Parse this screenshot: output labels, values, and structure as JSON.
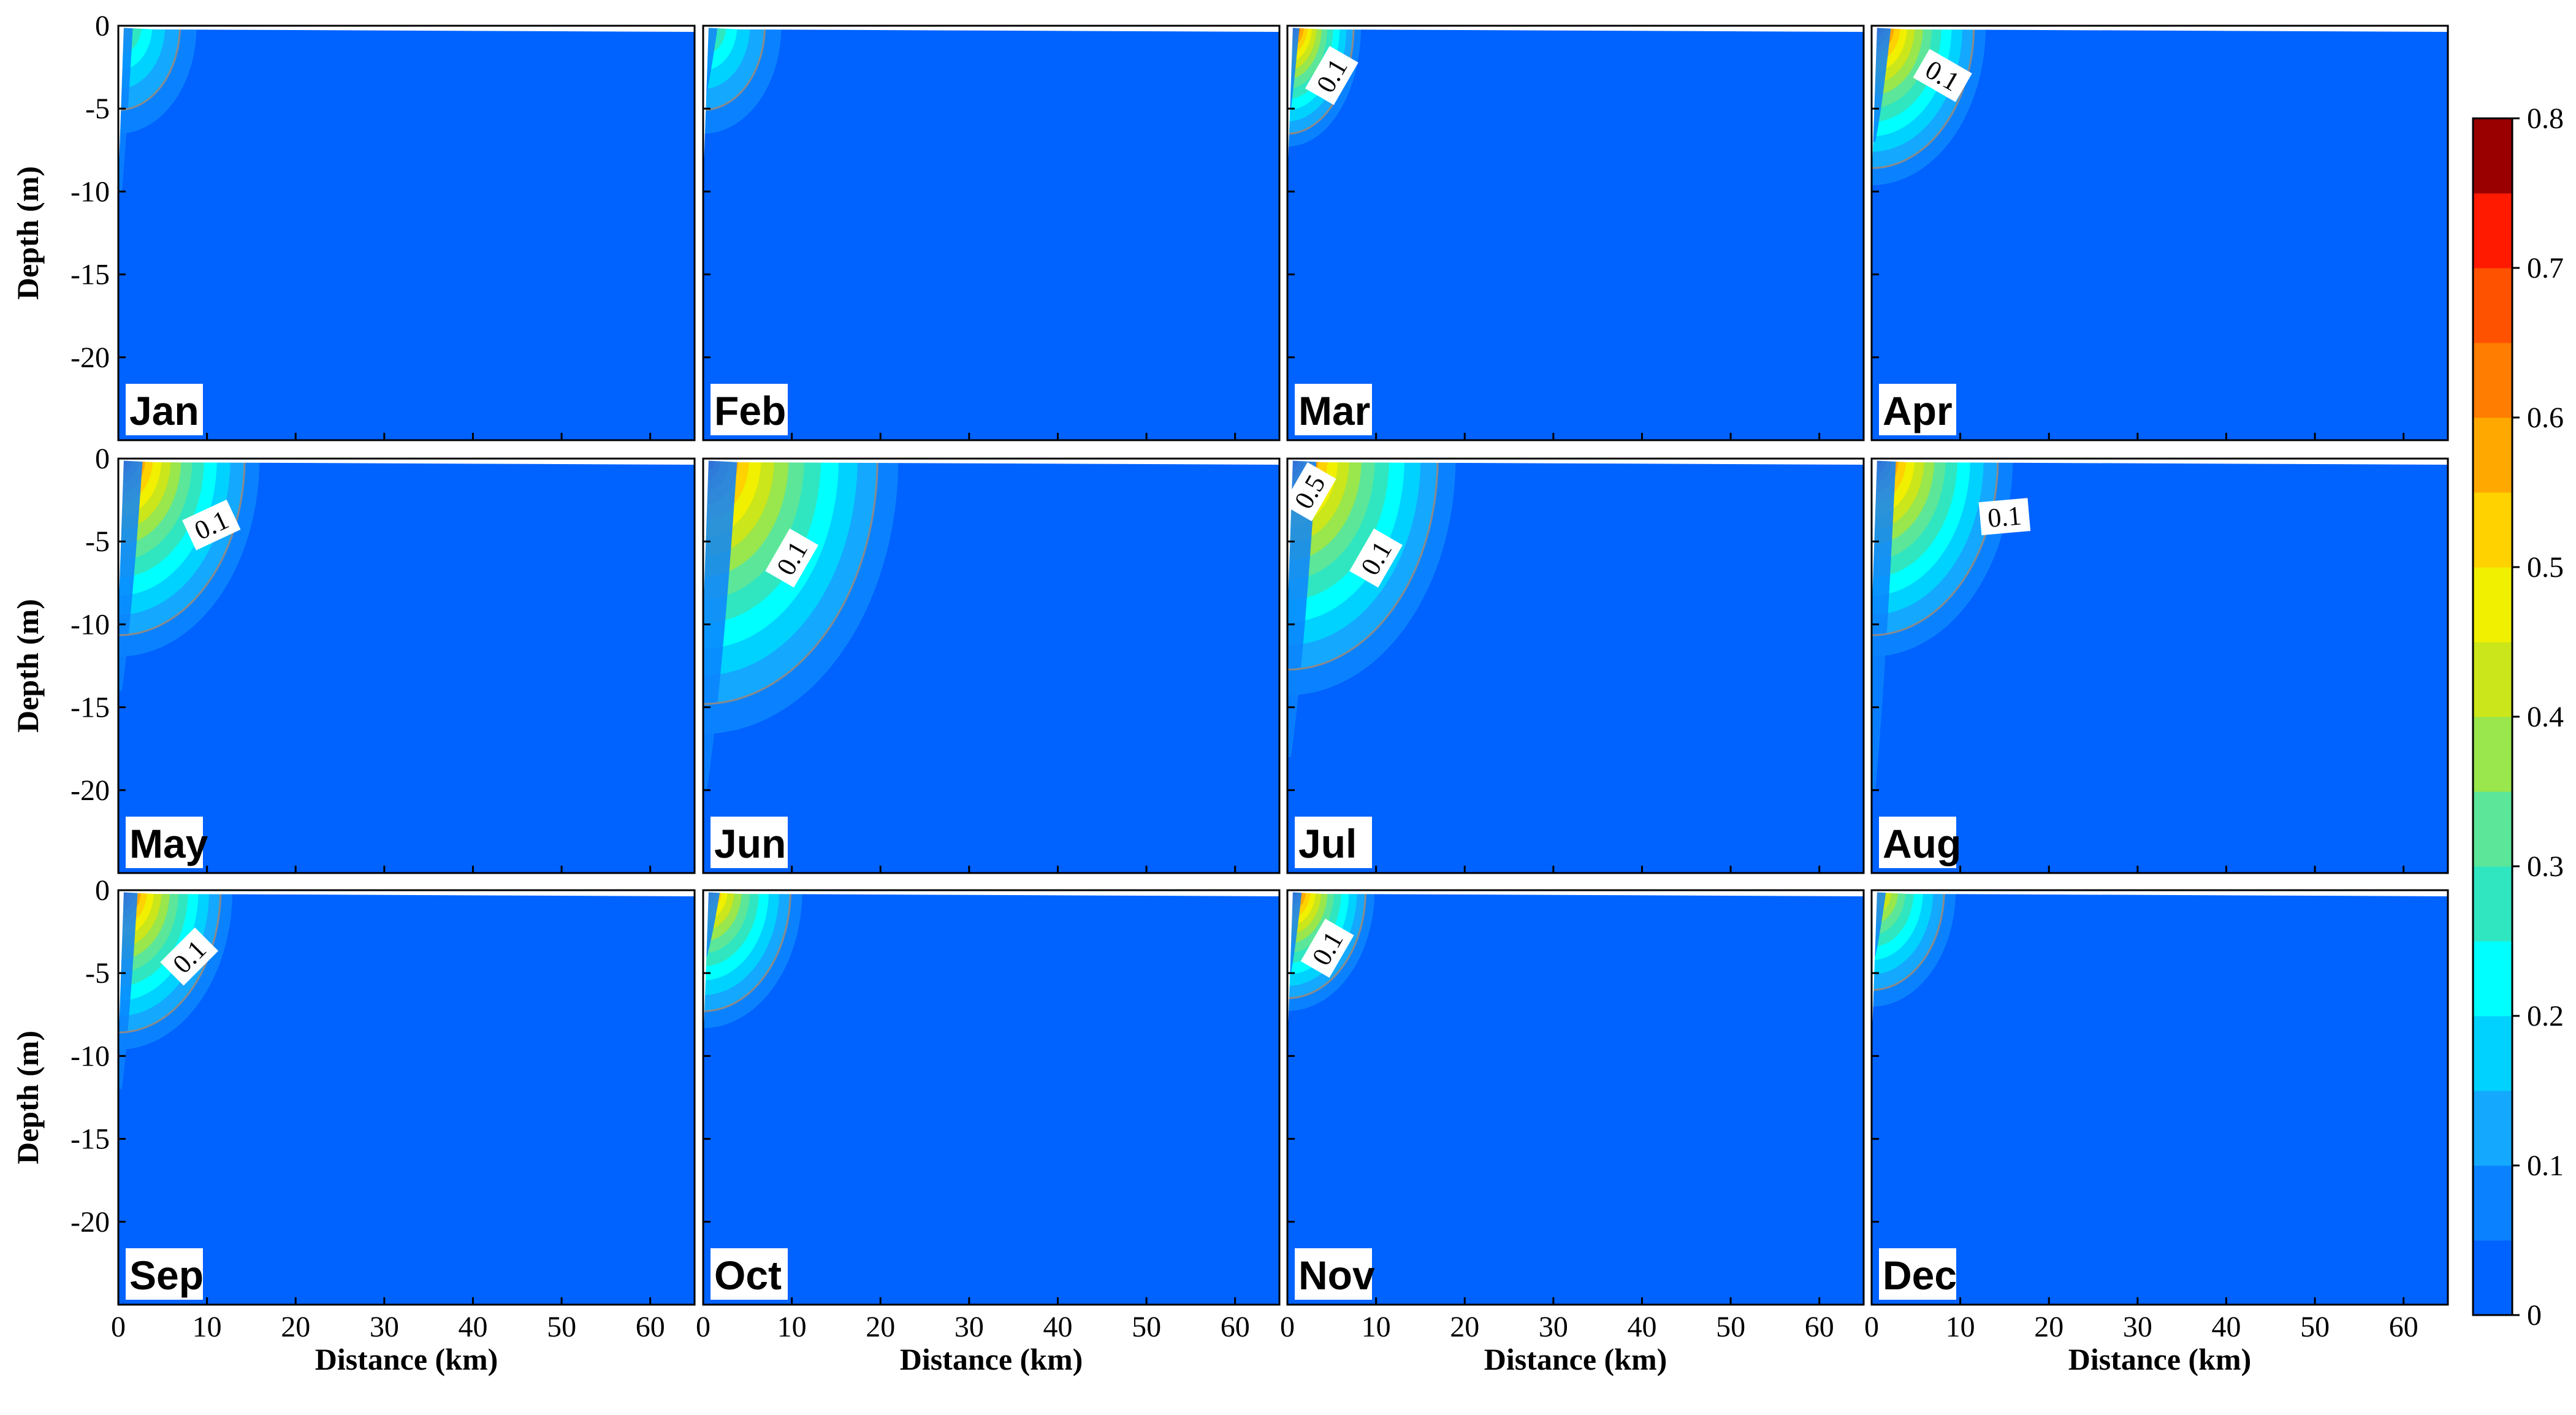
{
  "chart_data": {
    "type": "heatmap",
    "x_axis": {
      "label": "Distance (km)",
      "range": [
        0,
        65
      ],
      "ticks": [
        "0",
        "10",
        "20",
        "30",
        "40",
        "50",
        "60"
      ]
    },
    "y_axis": {
      "label": "Depth (m)",
      "range": [
        -25,
        0
      ],
      "ticks": [
        "0",
        "-5",
        "-10",
        "-15",
        "-20"
      ]
    },
    "colorbar": {
      "range": [
        0,
        0.8
      ],
      "step": 0.05,
      "tick_labels": [
        "0",
        "0.1",
        "0.2",
        "0.3",
        "0.4",
        "0.5",
        "0.6",
        "0.7",
        "0.8"
      ],
      "colors": [
        "#0062ff",
        "#0a82ff",
        "#14a8ff",
        "#00d2ff",
        "#00ffff",
        "#2fe6c0",
        "#5ce699",
        "#99e64d",
        "#cbe61a",
        "#f0f000",
        "#ffd200",
        "#ffa800",
        "#ff7d00",
        "#ff5200",
        "#ff1a00",
        "#e60000",
        "#9a0000"
      ]
    },
    "panels": [
      {
        "month": "Jan",
        "max": 0.4,
        "hx": 3,
        "hz": 3,
        "depth_ext": 10,
        "clabels": []
      },
      {
        "month": "Feb",
        "max": 0.4,
        "hx": 3,
        "hz": 3,
        "depth_ext": 4,
        "clabels": []
      },
      {
        "month": "Mar",
        "max": 0.8,
        "hx": 2.5,
        "hz": 3,
        "depth_ext": 5,
        "clabels": [
          {
            "text": "0.1",
            "x": 5,
            "depth": 3,
            "angle": -60
          }
        ]
      },
      {
        "month": "Apr",
        "max": 0.8,
        "hx": 4,
        "hz": 4,
        "depth_ext": 7,
        "clabels": [
          {
            "text": "0.1",
            "x": 8,
            "depth": 3,
            "angle": 30
          }
        ]
      },
      {
        "month": "May",
        "max": 0.8,
        "hx": 5,
        "hz": 5,
        "depth_ext": 14,
        "clabels": [
          {
            "text": "0.1",
            "x": 10.5,
            "depth": 4,
            "angle": -25
          }
        ]
      },
      {
        "month": "Jun",
        "max": 0.8,
        "hx": 7,
        "hz": 7,
        "depth_ext": 20,
        "clabels": [
          {
            "text": "0.1",
            "x": 10,
            "depth": 6,
            "angle": -60
          }
        ]
      },
      {
        "month": "Jul",
        "max": 0.8,
        "hx": 6,
        "hz": 6,
        "depth_ext": 18,
        "clabels": [
          {
            "text": "0.5",
            "x": 2.5,
            "depth": 2,
            "angle": -60
          },
          {
            "text": "0.1",
            "x": 10,
            "depth": 6,
            "angle": -60
          }
        ]
      },
      {
        "month": "Aug",
        "max": 0.8,
        "hx": 5,
        "hz": 5,
        "depth_ext": 20,
        "clabels": [
          {
            "text": "0.1",
            "x": 15,
            "depth": 3.5,
            "angle": -5
          }
        ]
      },
      {
        "month": "Sep",
        "max": 0.8,
        "hx": 4,
        "hz": 4,
        "depth_ext": 12,
        "clabels": [
          {
            "text": "0.1",
            "x": 8,
            "depth": 4,
            "angle": -45
          }
        ]
      },
      {
        "month": "Oct",
        "max": 0.7,
        "hx": 3.5,
        "hz": 3.5,
        "depth_ext": 4,
        "clabels": []
      },
      {
        "month": "Nov",
        "max": 0.8,
        "hx": 3,
        "hz": 3,
        "depth_ext": 5,
        "clabels": [
          {
            "text": "0.1",
            "x": 4.5,
            "depth": 3.5,
            "angle": -60
          }
        ]
      },
      {
        "month": "Dec",
        "max": 0.6,
        "hx": 3,
        "hz": 3,
        "depth_ext": 4,
        "clabels": []
      }
    ]
  }
}
